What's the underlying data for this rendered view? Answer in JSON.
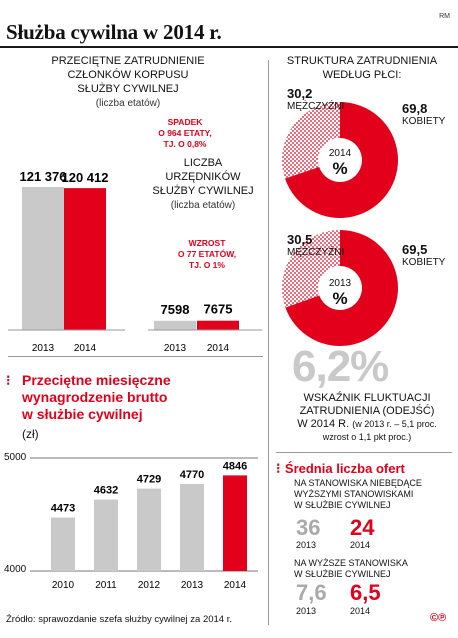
{
  "title": "Służba cywilna w 2014 r.",
  "corner_mark": "RM",
  "colors": {
    "red": "#e3001b",
    "gray": "#c9c9c9",
    "pink_hatch": "#f2a3ae"
  },
  "employment": {
    "heading_lines": [
      "PRZECIĘTNE ZATRUDNIENIE",
      "CZŁONKÓW KORPUSU",
      "SŁUŻBY CYWILNEJ"
    ],
    "sub": "(liczba etatów)",
    "annotation_lines": [
      "SPADEK",
      "O 964 ETATY,",
      "TJ. O 0,8%"
    ],
    "value_labels": [
      "121 376",
      "120 412"
    ]
  },
  "officials": {
    "heading_lines": [
      "LICZBA",
      "URZĘDNIKÓW",
      "SŁUŻBY CYWILNEJ"
    ],
    "sub": "(liczba etatów)",
    "annotation_lines": [
      "WZROST",
      "O 77 ETATÓW,",
      "TJ. O 1%"
    ],
    "value_labels": [
      "7598",
      "7675"
    ]
  },
  "gender": {
    "heading_lines": [
      "STRUKTURA ZATRUDNIENIA",
      "WEDŁUG PŁCI:"
    ],
    "men_label": "MĘŻCZYŹNI",
    "women_label": "KOBIETY",
    "percent_sign": "%",
    "donuts": [
      {
        "year": "2014",
        "men": "30,2",
        "women": "69,8"
      },
      {
        "year": "2013",
        "men": "30,5",
        "women": "69,5"
      }
    ]
  },
  "salary": {
    "title_lines": [
      "Przeciętne miesięczne",
      "wynagrodzenie brutto",
      "w służbie cywilnej"
    ],
    "unit": "(zł)",
    "axis_top": "5000",
    "axis_bottom": "4000"
  },
  "fluctuation": {
    "value": "6,2%",
    "lines": [
      "WSKAŹNIK FLUKTUACJI",
      "ZATRUDNIENIA (ODEJŚĆ)"
    ],
    "detail_prefix": "W 2014 R.",
    "detail_small": "(w 2013 r. – 5,1 proc.",
    "detail_small2": "wzrost o 1,1 pkt proc.)"
  },
  "offers": {
    "title": "Średnia liczba ofert",
    "group1_lines": [
      "NA STANOWISKA NIEBĘDĄCE",
      "WYŻSZYMI STANOWISKAMI",
      "W SŁUŻBIE CYWILNEJ"
    ],
    "group1_values": [
      "36",
      "24"
    ],
    "group2_lines": [
      "NA WYŻSZE STANOWISKA",
      "W SŁUŻBIE CYWILNEJ"
    ],
    "group2_values": [
      "7,6",
      "6,5"
    ],
    "years": [
      "2013",
      "2014"
    ]
  },
  "source": "Źródło: sprawozdanie szefa służby cywilnej za 2014 r.",
  "copyright": "©℗",
  "chart_data": [
    {
      "type": "bar",
      "title": "PRZECIĘTNE ZATRUDNIENIE CZŁONKÓW KORPUSU SŁUŻBY CYWILNEJ",
      "ylabel": "(liczba etatów)",
      "categories": [
        "2013",
        "2014"
      ],
      "values": [
        121376,
        120412
      ],
      "colors": [
        "#c9c9c9",
        "#e3001b"
      ]
    },
    {
      "type": "bar",
      "title": "LICZBA URZĘDNIKÓW SŁUŻBY CYWILNEJ",
      "ylabel": "(liczba etatów)",
      "categories": [
        "2013",
        "2014"
      ],
      "values": [
        7598,
        7675
      ],
      "colors": [
        "#c9c9c9",
        "#e3001b"
      ]
    },
    {
      "type": "bar",
      "title": "Przeciętne miesięczne wynagrodzenie brutto w służbie cywilnej",
      "ylabel": "(zł)",
      "categories": [
        "2010",
        "2011",
        "2012",
        "2013",
        "2014"
      ],
      "values": [
        4473,
        4632,
        4729,
        4770,
        4846
      ],
      "ylim": [
        4000,
        5000
      ]
    },
    {
      "type": "pie",
      "title": "2014",
      "categories": [
        "MĘŻCZYŹNI",
        "KOBIETY"
      ],
      "values": [
        30.2,
        69.8
      ]
    },
    {
      "type": "pie",
      "title": "2013",
      "categories": [
        "MĘŻCZYŹNI",
        "KOBIETY"
      ],
      "values": [
        30.5,
        69.5
      ]
    }
  ]
}
